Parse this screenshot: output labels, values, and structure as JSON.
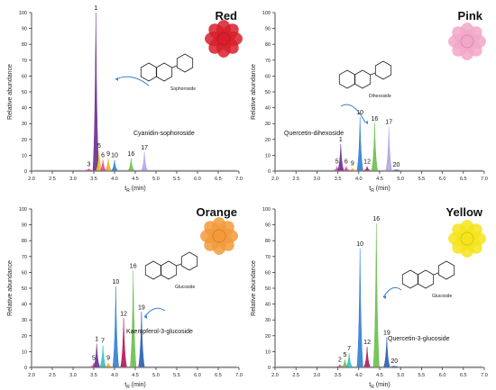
{
  "chart_data": [
    {
      "type": "area",
      "title": "Red",
      "xlabel": "tR (min)",
      "ylabel": "Relative abundance",
      "xlim": [
        2.0,
        7.0
      ],
      "ylim": [
        0,
        100
      ],
      "xticks": [
        "2.0",
        "2.5",
        "3.0",
        "3.5",
        "4.0",
        "4.5",
        "5.0",
        "5.5",
        "6.0",
        "6.5",
        "7.0"
      ],
      "yticks": [
        "0",
        "10",
        "20",
        "30",
        "40",
        "50",
        "60",
        "70",
        "80",
        "90",
        "100"
      ],
      "compound_label": "Cyanidin-sophoroside",
      "substituent_label": "Sophoroside",
      "flower_color": "#d81e2a",
      "peaks": [
        {
          "label": "3",
          "rt": 3.38,
          "height": 1.5,
          "color": "#e6258c"
        },
        {
          "label": "1",
          "rt": 3.55,
          "height": 100,
          "color": "#6a2c91"
        },
        {
          "label": "5",
          "rt": 3.63,
          "height": 13,
          "color": "#f0c419"
        },
        {
          "label": "6",
          "rt": 3.72,
          "height": 7,
          "color": "#e43ea8"
        },
        {
          "label": "9",
          "rt": 3.85,
          "height": 8,
          "color": "#f4a81d"
        },
        {
          "label": "10",
          "rt": 4.0,
          "height": 7,
          "color": "#2f7fd1"
        },
        {
          "label": "16",
          "rt": 4.4,
          "height": 8,
          "color": "#6abf4b"
        },
        {
          "label": "17",
          "rt": 4.72,
          "height": 12,
          "color": "#b1a4e8"
        }
      ]
    },
    {
      "type": "area",
      "title": "Pink",
      "xlabel": "tR (min)",
      "ylabel": "Relative abundance",
      "xlim": [
        2.0,
        7.0
      ],
      "ylim": [
        0,
        100
      ],
      "xticks": [
        "2.0",
        "2.5",
        "3.0",
        "3.5",
        "4.0",
        "4.5",
        "5.0",
        "5.5",
        "6.0",
        "6.5",
        "7.0"
      ],
      "yticks": [
        "0",
        "10",
        "20",
        "30",
        "40",
        "50",
        "60",
        "70",
        "80",
        "90",
        "100"
      ],
      "compound_label": "Quercetin-dihexoside",
      "substituent_label": "Dihexoside",
      "flower_color": "#f2a7c8",
      "peaks": [
        {
          "label": "5",
          "rt": 3.48,
          "height": 3,
          "color": "#e43ea8"
        },
        {
          "label": "1",
          "rt": 3.57,
          "height": 17,
          "color": "#6a2c91"
        },
        {
          "label": "6",
          "rt": 3.7,
          "height": 3,
          "color": "#e43ea8"
        },
        {
          "label": "9",
          "rt": 3.85,
          "height": 2,
          "color": "#f4a81d"
        },
        {
          "label": "10",
          "rt": 4.03,
          "height": 34,
          "color": "#2f7fd1"
        },
        {
          "label": "12",
          "rt": 4.2,
          "height": 3,
          "color": "#b4175a"
        },
        {
          "label": "16",
          "rt": 4.38,
          "height": 30,
          "color": "#6abf4b"
        },
        {
          "label": "17",
          "rt": 4.72,
          "height": 28,
          "color": "#b1a4e8"
        },
        {
          "label": "20",
          "rt": 4.9,
          "height": 1,
          "color": "#2a5db0"
        }
      ]
    },
    {
      "type": "area",
      "title": "Orange",
      "xlabel": "tR (min)",
      "ylabel": "Relative abundance",
      "xlim": [
        2.0,
        7.0
      ],
      "ylim": [
        0,
        100
      ],
      "xticks": [
        "2.0",
        "2.5",
        "3.0",
        "3.5",
        "4.0",
        "4.5",
        "5.0",
        "5.5",
        "6.0",
        "6.5",
        "7.0"
      ],
      "yticks": [
        "0",
        "10",
        "20",
        "30",
        "40",
        "50",
        "60",
        "70",
        "80",
        "90",
        "100"
      ],
      "compound_label": "Kaempferol-3-glucoside",
      "substituent_label": "Glucoside",
      "flower_color": "#f29a3a",
      "peaks": [
        {
          "label": "5",
          "rt": 3.5,
          "height": 3,
          "color": "#e43ea8"
        },
        {
          "label": "1",
          "rt": 3.57,
          "height": 15,
          "color": "#6a2c91"
        },
        {
          "label": "7",
          "rt": 3.72,
          "height": 14,
          "color": "#34c0c4"
        },
        {
          "label": "9",
          "rt": 3.85,
          "height": 3,
          "color": "#f4a81d"
        },
        {
          "label": "10",
          "rt": 4.03,
          "height": 51,
          "color": "#2f7fd1"
        },
        {
          "label": "12",
          "rt": 4.22,
          "height": 31,
          "color": "#b4175a"
        },
        {
          "label": "16",
          "rt": 4.45,
          "height": 61,
          "color": "#6abf4b"
        },
        {
          "label": "19",
          "rt": 4.65,
          "height": 35,
          "color": "#2a5db0"
        }
      ]
    },
    {
      "type": "area",
      "title": "Yellow",
      "xlabel": "tR (min)",
      "ylabel": "Relative abundance",
      "xlim": [
        2.0,
        7.0
      ],
      "ylim": [
        0,
        100
      ],
      "xticks": [
        "2.0",
        "2.5",
        "3.0",
        "3.5",
        "4.0",
        "4.5",
        "5.0",
        "5.5",
        "6.0",
        "6.5",
        "7.0"
      ],
      "yticks": [
        "0",
        "10",
        "20",
        "30",
        "40",
        "50",
        "60",
        "70",
        "80",
        "90",
        "100"
      ],
      "compound_label": "Quercetin-3-glucoside",
      "substituent_label": "Glucoside",
      "flower_color": "#f5e41c",
      "peaks": [
        {
          "label": "2",
          "rt": 3.55,
          "height": 2,
          "color": "#e43ea8"
        },
        {
          "label": "5",
          "rt": 3.67,
          "height": 5,
          "color": "#6abf4b"
        },
        {
          "label": "7",
          "rt": 3.77,
          "height": 9,
          "color": "#34c0c4"
        },
        {
          "label": "10",
          "rt": 4.03,
          "height": 75,
          "color": "#2f7fd1"
        },
        {
          "label": "12",
          "rt": 4.2,
          "height": 13,
          "color": "#b4175a"
        },
        {
          "label": "16",
          "rt": 4.42,
          "height": 91,
          "color": "#6abf4b"
        },
        {
          "label": "19",
          "rt": 4.67,
          "height": 19,
          "color": "#2a5db0"
        },
        {
          "label": "20",
          "rt": 4.85,
          "height": 1,
          "color": "#2a5db0"
        }
      ]
    }
  ]
}
